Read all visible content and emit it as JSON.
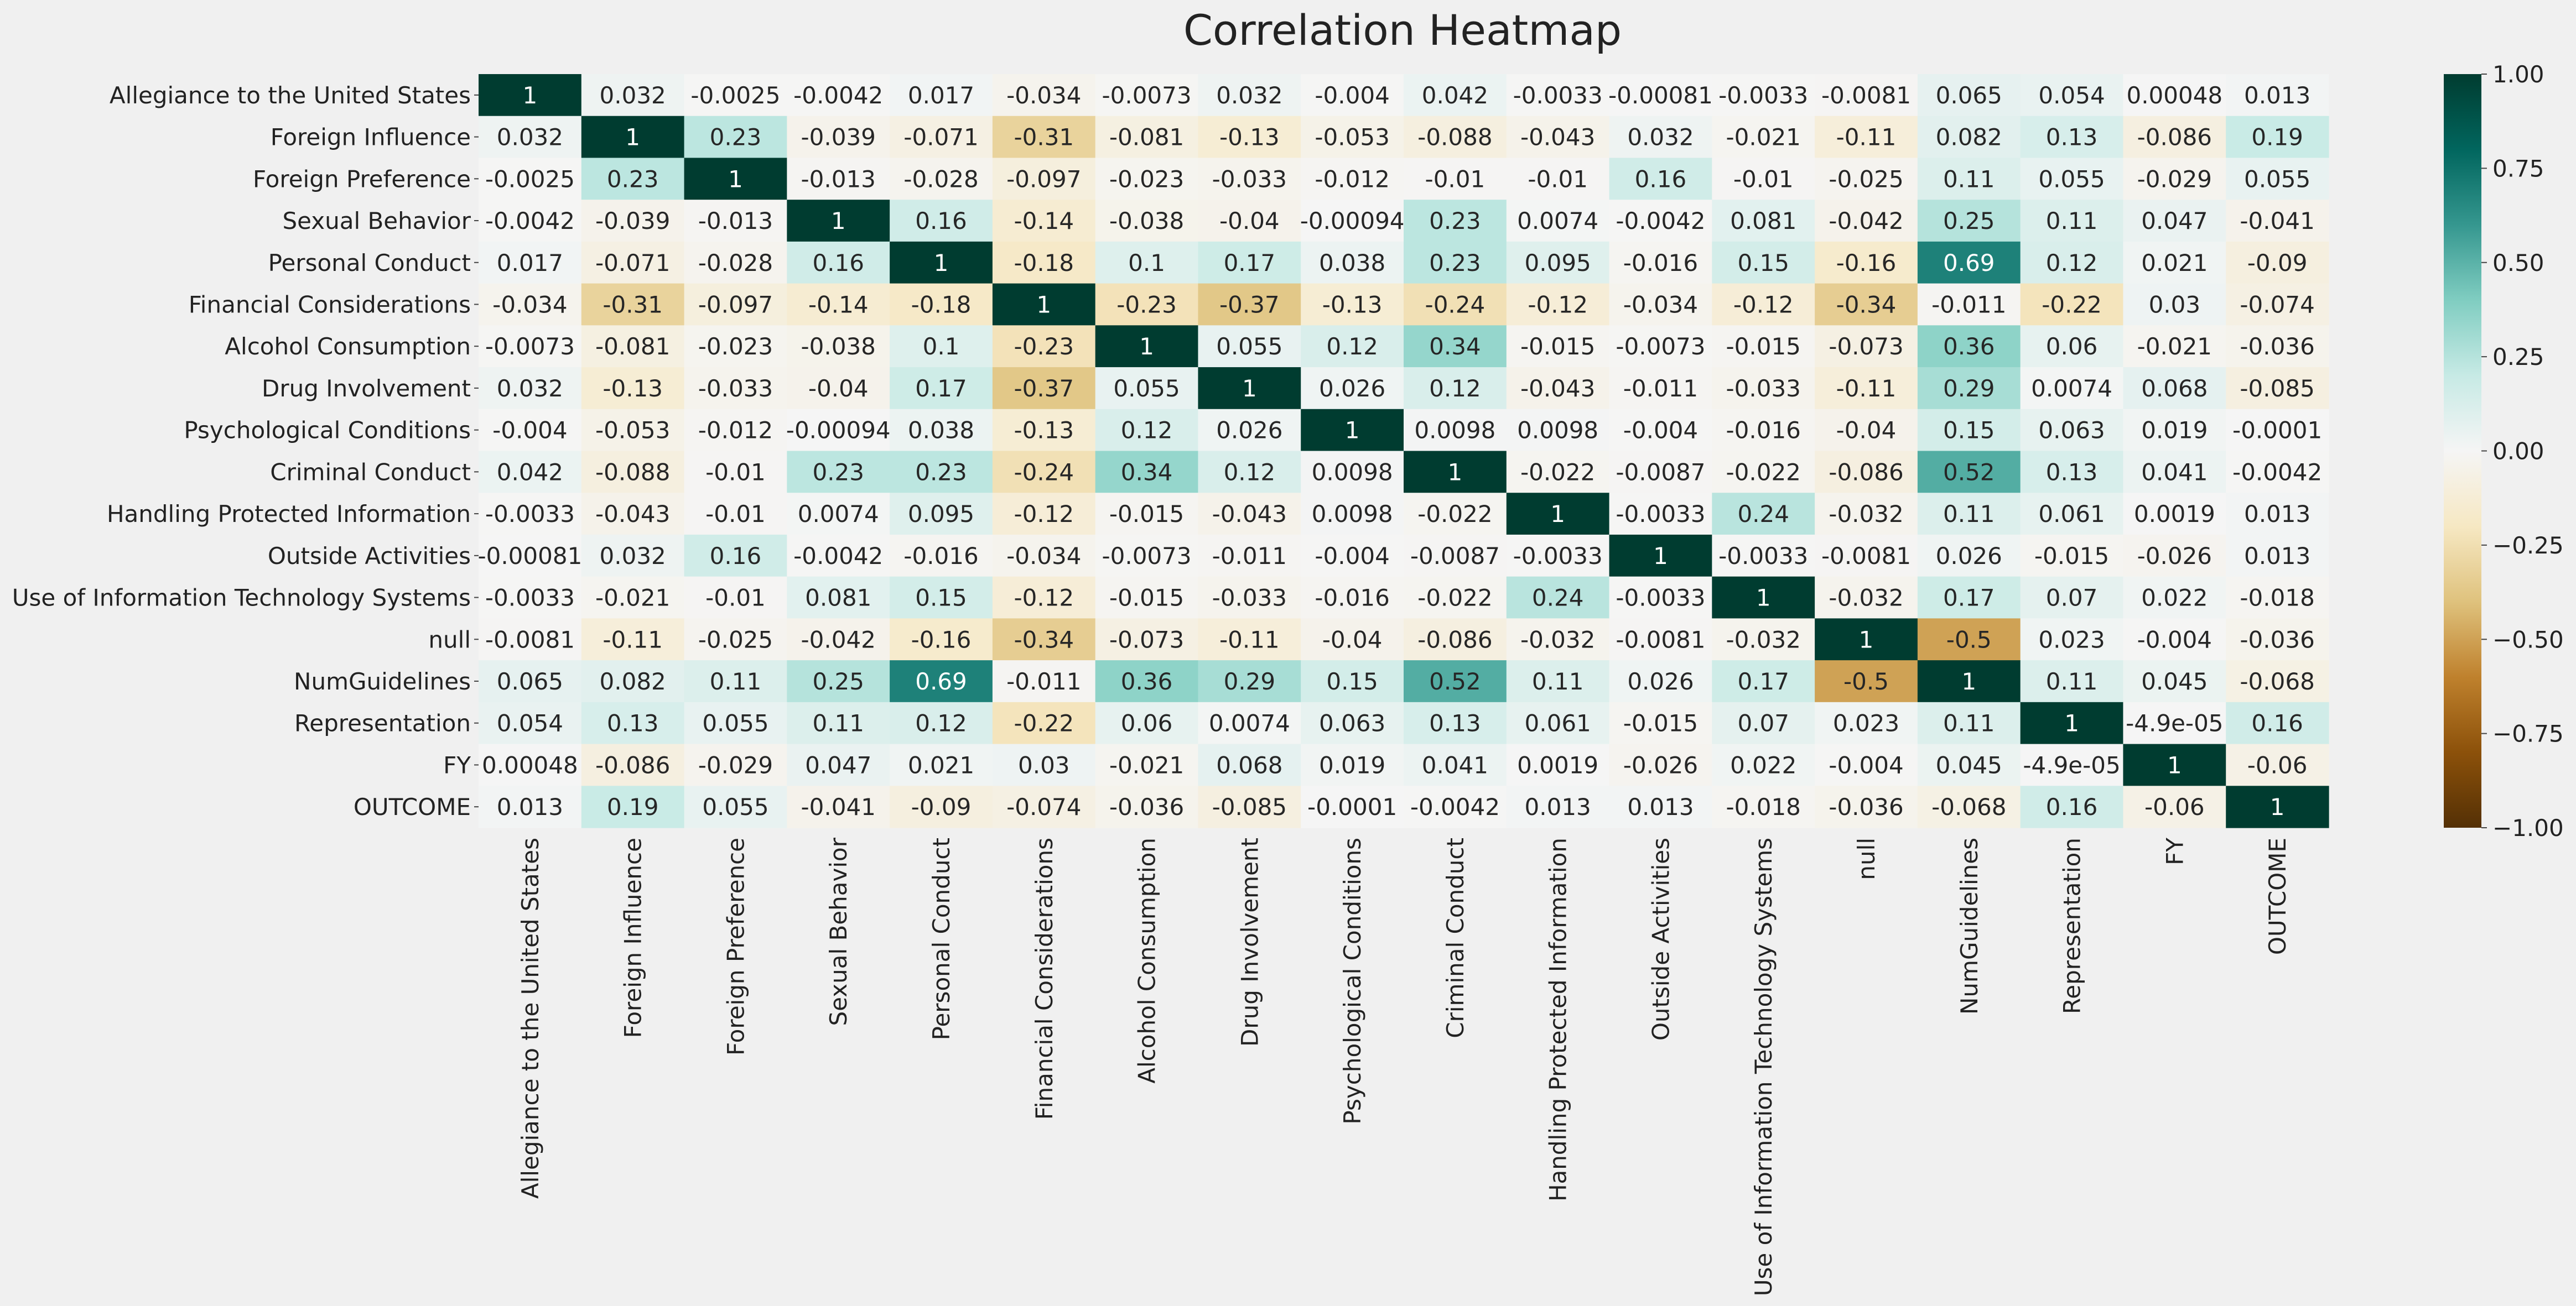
{
  "chart_data": {
    "type": "heatmap",
    "title": "Correlation Heatmap",
    "labels": [
      "Allegiance to the United States",
      "Foreign Influence",
      "Foreign Preference",
      "Sexual Behavior",
      "Personal Conduct",
      "Financial Considerations",
      "Alcohol Consumption",
      "Drug Involvement",
      "Psychological Conditions",
      "Criminal Conduct",
      "Handling Protected Information",
      "Outside Activities",
      "Use of Information Technology Systems",
      "null",
      "NumGuidelines",
      "Representation",
      "FY",
      "OUTCOME"
    ],
    "matrix": [
      [
        1,
        0.032,
        -0.0025,
        -0.0042,
        0.017,
        -0.034,
        -0.0073,
        0.032,
        -0.004,
        0.042,
        -0.0033,
        -0.00081,
        -0.0033,
        -0.0081,
        0.065,
        0.054,
        0.00048,
        0.013
      ],
      [
        0.032,
        1,
        0.23,
        -0.039,
        -0.071,
        -0.31,
        -0.081,
        -0.13,
        -0.053,
        -0.088,
        -0.043,
        0.032,
        -0.021,
        -0.11,
        0.082,
        0.13,
        -0.086,
        0.19
      ],
      [
        -0.0025,
        0.23,
        1,
        -0.013,
        -0.028,
        -0.097,
        -0.023,
        -0.033,
        -0.012,
        -0.01,
        -0.01,
        0.16,
        -0.01,
        -0.025,
        0.11,
        0.055,
        -0.029,
        0.055
      ],
      [
        -0.0042,
        -0.039,
        -0.013,
        1,
        0.16,
        -0.14,
        -0.038,
        -0.04,
        -0.00094,
        0.23,
        0.0074,
        -0.0042,
        0.081,
        -0.042,
        0.25,
        0.11,
        0.047,
        -0.041
      ],
      [
        0.017,
        -0.071,
        -0.028,
        0.16,
        1,
        -0.18,
        0.1,
        0.17,
        0.038,
        0.23,
        0.095,
        -0.016,
        0.15,
        -0.16,
        0.69,
        0.12,
        0.021,
        -0.09
      ],
      [
        -0.034,
        -0.31,
        -0.097,
        -0.14,
        -0.18,
        1,
        -0.23,
        -0.37,
        -0.13,
        -0.24,
        -0.12,
        -0.034,
        -0.12,
        -0.34,
        -0.011,
        -0.22,
        0.03,
        -0.074
      ],
      [
        -0.0073,
        -0.081,
        -0.023,
        -0.038,
        0.1,
        -0.23,
        1,
        0.055,
        0.12,
        0.34,
        -0.015,
        -0.0073,
        -0.015,
        -0.073,
        0.36,
        0.06,
        -0.021,
        -0.036
      ],
      [
        0.032,
        -0.13,
        -0.033,
        -0.04,
        0.17,
        -0.37,
        0.055,
        1,
        0.026,
        0.12,
        -0.043,
        -0.011,
        -0.033,
        -0.11,
        0.29,
        0.0074,
        0.068,
        -0.085
      ],
      [
        -0.004,
        -0.053,
        -0.012,
        -0.00094,
        0.038,
        -0.13,
        0.12,
        0.026,
        1,
        0.0098,
        0.0098,
        -0.004,
        -0.016,
        -0.04,
        0.15,
        0.063,
        0.019,
        -0.0001
      ],
      [
        0.042,
        -0.088,
        -0.01,
        0.23,
        0.23,
        -0.24,
        0.34,
        0.12,
        0.0098,
        1,
        -0.022,
        -0.0087,
        -0.022,
        -0.086,
        0.52,
        0.13,
        0.041,
        -0.0042
      ],
      [
        -0.0033,
        -0.043,
        -0.01,
        0.0074,
        0.095,
        -0.12,
        -0.015,
        -0.043,
        0.0098,
        -0.022,
        1,
        -0.0033,
        0.24,
        -0.032,
        0.11,
        0.061,
        0.0019,
        0.013
      ],
      [
        -0.00081,
        0.032,
        0.16,
        -0.0042,
        -0.016,
        -0.034,
        -0.0073,
        -0.011,
        -0.004,
        -0.0087,
        -0.0033,
        1,
        -0.0033,
        -0.0081,
        0.026,
        -0.015,
        -0.026,
        0.013
      ],
      [
        -0.0033,
        -0.021,
        -0.01,
        0.081,
        0.15,
        -0.12,
        -0.015,
        -0.033,
        -0.016,
        -0.022,
        0.24,
        -0.0033,
        1,
        -0.032,
        0.17,
        0.07,
        0.022,
        -0.018
      ],
      [
        -0.0081,
        -0.11,
        -0.025,
        -0.042,
        -0.16,
        -0.34,
        -0.073,
        -0.11,
        -0.04,
        -0.086,
        -0.032,
        -0.0081,
        -0.032,
        1,
        -0.5,
        0.023,
        -0.004,
        -0.036
      ],
      [
        0.065,
        0.082,
        0.11,
        0.25,
        0.69,
        -0.011,
        0.36,
        0.29,
        0.15,
        0.52,
        0.11,
        0.026,
        0.17,
        -0.5,
        1,
        0.11,
        0.045,
        -0.068
      ],
      [
        0.054,
        0.13,
        0.055,
        0.11,
        0.12,
        -0.22,
        0.06,
        0.0074,
        0.063,
        0.13,
        0.061,
        -0.015,
        0.07,
        0.023,
        0.11,
        1,
        -4.9e-05,
        0.16
      ],
      [
        0.00048,
        -0.086,
        -0.029,
        0.047,
        0.021,
        0.03,
        -0.021,
        0.068,
        0.019,
        0.041,
        0.0019,
        -0.026,
        0.022,
        -0.004,
        0.045,
        -4.9e-05,
        1,
        -0.06
      ],
      [
        0.013,
        0.19,
        0.055,
        -0.041,
        -0.09,
        -0.074,
        -0.036,
        -0.085,
        -0.0001,
        -0.0042,
        0.013,
        0.013,
        -0.018,
        -0.036,
        -0.068,
        0.16,
        -0.06,
        1
      ]
    ],
    "annotations": [
      [
        "1",
        "0.032",
        "-0.0025",
        "-0.0042",
        "0.017",
        "-0.034",
        "-0.0073",
        "0.032",
        "-0.004",
        "0.042",
        "-0.0033",
        "-0.00081",
        "-0.0033",
        "-0.0081",
        "0.065",
        "0.054",
        "0.00048",
        "0.013"
      ],
      [
        "0.032",
        "1",
        "0.23",
        "-0.039",
        "-0.071",
        "-0.31",
        "-0.081",
        "-0.13",
        "-0.053",
        "-0.088",
        "-0.043",
        "0.032",
        "-0.021",
        "-0.11",
        "0.082",
        "0.13",
        "-0.086",
        "0.19"
      ],
      [
        "-0.0025",
        "0.23",
        "1",
        "-0.013",
        "-0.028",
        "-0.097",
        "-0.023",
        "-0.033",
        "-0.012",
        "-0.01",
        "-0.01",
        "0.16",
        "-0.01",
        "-0.025",
        "0.11",
        "0.055",
        "-0.029",
        "0.055"
      ],
      [
        "-0.0042",
        "-0.039",
        "-0.013",
        "1",
        "0.16",
        "-0.14",
        "-0.038",
        "-0.04",
        "-0.00094",
        "0.23",
        "0.0074",
        "-0.0042",
        "0.081",
        "-0.042",
        "0.25",
        "0.11",
        "0.047",
        "-0.041"
      ],
      [
        "0.017",
        "-0.071",
        "-0.028",
        "0.16",
        "1",
        "-0.18",
        "0.1",
        "0.17",
        "0.038",
        "0.23",
        "0.095",
        "-0.016",
        "0.15",
        "-0.16",
        "0.69",
        "0.12",
        "0.021",
        "-0.09"
      ],
      [
        "-0.034",
        "-0.31",
        "-0.097",
        "-0.14",
        "-0.18",
        "1",
        "-0.23",
        "-0.37",
        "-0.13",
        "-0.24",
        "-0.12",
        "-0.034",
        "-0.12",
        "-0.34",
        "-0.011",
        "-0.22",
        "0.03",
        "-0.074"
      ],
      [
        "-0.0073",
        "-0.081",
        "-0.023",
        "-0.038",
        "0.1",
        "-0.23",
        "1",
        "0.055",
        "0.12",
        "0.34",
        "-0.015",
        "-0.0073",
        "-0.015",
        "-0.073",
        "0.36",
        "0.06",
        "-0.021",
        "-0.036"
      ],
      [
        "0.032",
        "-0.13",
        "-0.033",
        "-0.04",
        "0.17",
        "-0.37",
        "0.055",
        "1",
        "0.026",
        "0.12",
        "-0.043",
        "-0.011",
        "-0.033",
        "-0.11",
        "0.29",
        "0.0074",
        "0.068",
        "-0.085"
      ],
      [
        "-0.004",
        "-0.053",
        "-0.012",
        "-0.00094",
        "0.038",
        "-0.13",
        "0.12",
        "0.026",
        "1",
        "0.0098",
        "0.0098",
        "-0.004",
        "-0.016",
        "-0.04",
        "0.15",
        "0.063",
        "0.019",
        "-0.0001"
      ],
      [
        "0.042",
        "-0.088",
        "-0.01",
        "0.23",
        "0.23",
        "-0.24",
        "0.34",
        "0.12",
        "0.0098",
        "1",
        "-0.022",
        "-0.0087",
        "-0.022",
        "-0.086",
        "0.52",
        "0.13",
        "0.041",
        "-0.0042"
      ],
      [
        "-0.0033",
        "-0.043",
        "-0.01",
        "0.0074",
        "0.095",
        "-0.12",
        "-0.015",
        "-0.043",
        "0.0098",
        "-0.022",
        "1",
        "-0.0033",
        "0.24",
        "-0.032",
        "0.11",
        "0.061",
        "0.0019",
        "0.013"
      ],
      [
        "-0.00081",
        "0.032",
        "0.16",
        "-0.0042",
        "-0.016",
        "-0.034",
        "-0.0073",
        "-0.011",
        "-0.004",
        "-0.0087",
        "-0.0033",
        "1",
        "-0.0033",
        "-0.0081",
        "0.026",
        "-0.015",
        "-0.026",
        "0.013"
      ],
      [
        "-0.0033",
        "-0.021",
        "-0.01",
        "0.081",
        "0.15",
        "-0.12",
        "-0.015",
        "-0.033",
        "-0.016",
        "-0.022",
        "0.24",
        "-0.0033",
        "1",
        "-0.032",
        "0.17",
        "0.07",
        "0.022",
        "-0.018"
      ],
      [
        "-0.0081",
        "-0.11",
        "-0.025",
        "-0.042",
        "-0.16",
        "-0.34",
        "-0.073",
        "-0.11",
        "-0.04",
        "-0.086",
        "-0.032",
        "-0.0081",
        "-0.032",
        "1",
        "-0.5",
        "0.023",
        "-0.004",
        "-0.036"
      ],
      [
        "0.065",
        "0.082",
        "0.11",
        "0.25",
        "0.69",
        "-0.011",
        "0.36",
        "0.29",
        "0.15",
        "0.52",
        "0.11",
        "0.026",
        "0.17",
        "-0.5",
        "1",
        "0.11",
        "0.045",
        "-0.068"
      ],
      [
        "0.054",
        "0.13",
        "0.055",
        "0.11",
        "0.12",
        "-0.22",
        "0.06",
        "0.0074",
        "0.063",
        "0.13",
        "0.061",
        "-0.015",
        "0.07",
        "0.023",
        "0.11",
        "1",
        "-4.9e-05",
        "0.16"
      ],
      [
        "0.00048",
        "-0.086",
        "-0.029",
        "0.047",
        "0.021",
        "0.03",
        "-0.021",
        "0.068",
        "0.019",
        "0.041",
        "0.0019",
        "-0.026",
        "0.022",
        "-0.004",
        "0.045",
        "-4.9e-05",
        "1",
        "-0.06"
      ],
      [
        "0.013",
        "0.19",
        "0.055",
        "-0.041",
        "-0.09",
        "-0.074",
        "-0.036",
        "-0.085",
        "-0.0001",
        "-0.0042",
        "0.013",
        "0.013",
        "-0.018",
        "-0.036",
        "-0.068",
        "0.16",
        "-0.06",
        "1"
      ]
    ],
    "colorbar": {
      "range": [
        -1,
        1
      ],
      "ticks": [
        1.0,
        0.75,
        0.5,
        0.25,
        0.0,
        -0.25,
        -0.5,
        -0.75,
        -1.0
      ],
      "tick_labels": [
        "1.00",
        "0.75",
        "0.50",
        "0.25",
        "0.00",
        "−0.25",
        "−0.50",
        "−0.75",
        "−1.00"
      ],
      "colormap": "BrBG",
      "stops": [
        "#543005",
        "#8c510a",
        "#bf812d",
        "#dfc27d",
        "#f6e8c3",
        "#f5f5f5",
        "#c7eae5",
        "#80cdc1",
        "#35978f",
        "#01665e",
        "#003c30"
      ]
    },
    "background": "#f0f0f0",
    "grid": false
  }
}
